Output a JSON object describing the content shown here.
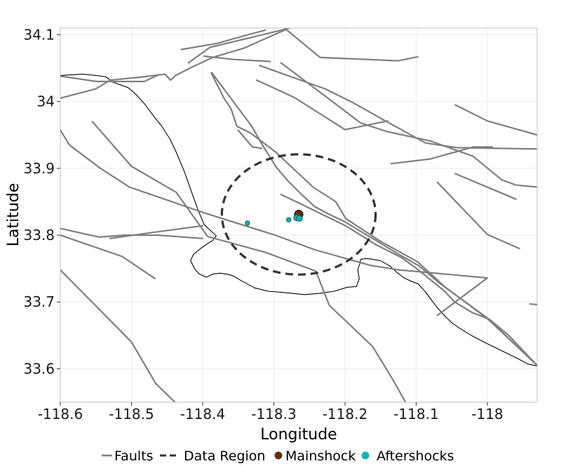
{
  "chart_data": {
    "type": "scatter",
    "xlabel": "Longitude",
    "ylabel": "Latitude",
    "xlim": [
      -118.6,
      -117.93
    ],
    "ylim": [
      33.55,
      34.11
    ],
    "grid": true,
    "x_ticks": [
      {
        "value": -118.6,
        "label": "-118.6"
      },
      {
        "value": -118.5,
        "label": "-118.5"
      },
      {
        "value": -118.4,
        "label": "-118.4"
      },
      {
        "value": -118.3,
        "label": "-118.3"
      },
      {
        "value": -118.2,
        "label": "-118.2"
      },
      {
        "value": -118.1,
        "label": "-118.1"
      },
      {
        "value": -118.0,
        "label": "-118"
      }
    ],
    "y_ticks": [
      {
        "value": 33.6,
        "label": "33.6"
      },
      {
        "value": 33.7,
        "label": "33.7"
      },
      {
        "value": 33.8,
        "label": "33.8"
      },
      {
        "value": 33.9,
        "label": "33.9"
      },
      {
        "value": 34.0,
        "label": "34"
      },
      {
        "value": 34.1,
        "label": "34.1"
      }
    ],
    "legend": {
      "placement": "bottom",
      "items": [
        {
          "label": "Faults",
          "style": "solid-line",
          "color": "#7f7f7f"
        },
        {
          "label": "Data Region",
          "style": "dashed-line",
          "color": "#333333"
        },
        {
          "label": "Mainshock",
          "style": "point",
          "color": "#5c3310"
        },
        {
          "label": "Aftershocks",
          "style": "point",
          "color": "#1aafaf"
        }
      ]
    },
    "colors": {
      "faults": "#7f7f7f",
      "coastline": "#000000",
      "region": "#333333",
      "mainshock": "#5c3310",
      "aftershocks": "#1aafaf",
      "grid": "#ebebeb"
    },
    "mainshock": {
      "x": -118.265,
      "y": 33.831
    },
    "aftershocks": [
      {
        "x": -118.337,
        "y": 33.818
      },
      {
        "x": -118.279,
        "y": 33.823
      },
      {
        "x": -118.268,
        "y": 33.826
      },
      {
        "x": -118.264,
        "y": 33.825
      }
    ],
    "data_region": {
      "center": [
        -118.265,
        33.831
      ],
      "radius_lon": 0.108,
      "radius_lat": 0.09
    },
    "coastline": [
      [
        -118.6,
        34.039
      ],
      [
        -118.569,
        34.041
      ],
      [
        -118.549,
        34.039
      ],
      [
        -118.536,
        34.037
      ],
      [
        -118.526,
        34.029
      ],
      [
        -118.505,
        34.021
      ],
      [
        -118.494,
        34.011
      ],
      [
        -118.482,
        33.997
      ],
      [
        -118.468,
        33.977
      ],
      [
        -118.458,
        33.964
      ],
      [
        -118.446,
        33.944
      ],
      [
        -118.437,
        33.924
      ],
      [
        -118.426,
        33.896
      ],
      [
        -118.416,
        33.866
      ],
      [
        -118.407,
        33.839
      ],
      [
        -118.398,
        33.816
      ],
      [
        -118.389,
        33.807
      ],
      [
        -118.381,
        33.799
      ],
      [
        -118.386,
        33.792
      ],
      [
        -118.395,
        33.786
      ],
      [
        -118.404,
        33.779
      ],
      [
        -118.413,
        33.771
      ],
      [
        -118.417,
        33.762
      ],
      [
        -118.411,
        33.749
      ],
      [
        -118.405,
        33.742
      ],
      [
        -118.395,
        33.737
      ],
      [
        -118.385,
        33.742
      ],
      [
        -118.375,
        33.743
      ],
      [
        -118.363,
        33.741
      ],
      [
        -118.355,
        33.738
      ],
      [
        -118.346,
        33.732
      ],
      [
        -118.327,
        33.721
      ],
      [
        -118.308,
        33.716
      ],
      [
        -118.284,
        33.714
      ],
      [
        -118.257,
        33.711
      ],
      [
        -118.235,
        33.713
      ],
      [
        -118.215,
        33.716
      ],
      [
        -118.197,
        33.722
      ],
      [
        -118.184,
        33.723
      ],
      [
        -118.18,
        33.735
      ],
      [
        -118.182,
        33.748
      ],
      [
        -118.179,
        33.758
      ],
      [
        -118.178,
        33.764
      ],
      [
        -118.168,
        33.765
      ],
      [
        -118.151,
        33.762
      ],
      [
        -118.137,
        33.754
      ],
      [
        -118.128,
        33.745
      ],
      [
        -118.117,
        33.736
      ],
      [
        -118.107,
        33.731
      ],
      [
        -118.097,
        33.727
      ],
      [
        -118.087,
        33.715
      ],
      [
        -118.08,
        33.705
      ],
      [
        -118.07,
        33.691
      ],
      [
        -118.058,
        33.677
      ],
      [
        -118.049,
        33.668
      ],
      [
        -118.038,
        33.66
      ],
      [
        -118.021,
        33.649
      ],
      [
        -118.001,
        33.638
      ],
      [
        -117.976,
        33.625
      ],
      [
        -117.955,
        33.614
      ],
      [
        -117.943,
        33.607
      ],
      [
        -117.93,
        33.604
      ]
    ],
    "faults": [
      [
        [
          -118.6,
          34.038
        ],
        [
          -118.549,
          34.03
        ],
        [
          -118.518,
          34.03
        ],
        [
          -118.482,
          34.03
        ],
        [
          -118.462,
          34.04
        ]
      ],
      [
        [
          -118.6,
          34.005
        ],
        [
          -118.55,
          34.019
        ],
        [
          -118.53,
          34.032
        ],
        [
          -118.483,
          34.037
        ],
        [
          -118.453,
          34.041
        ],
        [
          -118.445,
          34.032
        ],
        [
          -118.438,
          34.039
        ],
        [
          -118.418,
          34.05
        ],
        [
          -118.386,
          34.066
        ],
        [
          -118.342,
          34.08
        ],
        [
          -118.272,
          34.113
        ]
      ],
      [
        [
          -118.42,
          34.058
        ],
        [
          -118.39,
          34.081
        ],
        [
          -118.328,
          34.097
        ],
        [
          -118.285,
          34.108
        ]
      ],
      [
        [
          -118.43,
          34.078
        ],
        [
          -118.38,
          34.087
        ],
        [
          -118.34,
          34.099
        ],
        [
          -118.312,
          34.107
        ]
      ],
      [
        [
          -118.398,
          34.068
        ],
        [
          -118.357,
          34.063
        ],
        [
          -118.305,
          34.06
        ]
      ],
      [
        [
          -118.285,
          34.11
        ],
        [
          -118.235,
          34.066
        ],
        [
          -118.125,
          34.061
        ],
        [
          -118.098,
          34.067
        ]
      ],
      [
        [
          -118.32,
          34.054
        ],
        [
          -118.27,
          34.035
        ],
        [
          -118.228,
          34.019
        ],
        [
          -118.19,
          33.999
        ],
        [
          -118.145,
          33.972
        ],
        [
          -118.087,
          33.938
        ],
        [
          -118.043,
          33.931
        ],
        [
          -117.93,
          33.929
        ]
      ],
      [
        [
          -118.29,
          34.058
        ],
        [
          -118.23,
          34.01
        ],
        [
          -118.178,
          33.968
        ],
        [
          -118.141,
          33.955
        ],
        [
          -118.08,
          33.941
        ],
        [
          -118.02,
          33.918
        ],
        [
          -117.98,
          33.883
        ],
        [
          -117.96,
          33.875
        ],
        [
          -117.93,
          33.872
        ]
      ],
      [
        [
          -118.324,
          34.032
        ],
        [
          -118.271,
          34.006
        ],
        [
          -118.2,
          33.958
        ],
        [
          -118.14,
          33.971
        ]
      ],
      [
        [
          -118.135,
          33.907
        ],
        [
          -118.08,
          33.914
        ],
        [
          -118.02,
          33.932
        ],
        [
          -117.993,
          33.932
        ]
      ],
      [
        [
          -118.045,
          33.995
        ],
        [
          -118.0,
          33.971
        ],
        [
          -117.93,
          33.95
        ]
      ],
      [
        [
          -118.045,
          33.892
        ],
        [
          -117.96,
          33.854
        ]
      ],
      [
        [
          -118.07,
          33.879
        ],
        [
          -118.0,
          33.801
        ],
        [
          -117.955,
          33.78
        ]
      ],
      [
        [
          -118.6,
          33.957
        ],
        [
          -118.587,
          33.935
        ],
        [
          -118.545,
          33.901
        ],
        [
          -118.503,
          33.872
        ],
        [
          -118.397,
          33.833
        ],
        [
          -118.298,
          33.8
        ],
        [
          -118.242,
          33.778
        ],
        [
          -118.165,
          33.755
        ],
        [
          -118.125,
          33.748
        ],
        [
          -118.0,
          33.736
        ],
        [
          -118.07,
          33.68
        ]
      ],
      [
        [
          -118.555,
          33.97
        ],
        [
          -118.5,
          33.903
        ],
        [
          -118.437,
          33.864
        ],
        [
          -118.393,
          33.798
        ],
        [
          -118.311,
          33.774
        ],
        [
          -118.241,
          33.746
        ],
        [
          -118.222,
          33.695
        ],
        [
          -118.161,
          33.633
        ],
        [
          -118.133,
          33.584
        ],
        [
          -118.115,
          33.55
        ]
      ],
      [
        [
          -118.29,
          33.861
        ],
        [
          -118.253,
          33.842
        ],
        [
          -118.199,
          33.814
        ],
        [
          -118.157,
          33.786
        ],
        [
          -118.12,
          33.766
        ],
        [
          -118.097,
          33.748
        ],
        [
          -118.06,
          33.716
        ],
        [
          -118.046,
          33.7
        ],
        [
          -118.021,
          33.684
        ],
        [
          -117.997,
          33.674
        ],
        [
          -117.97,
          33.65
        ],
        [
          -117.93,
          33.605
        ]
      ],
      [
        [
          -118.388,
          34.043
        ],
        [
          -118.37,
          34.005
        ],
        [
          -118.36,
          33.989
        ],
        [
          -118.352,
          33.963
        ],
        [
          -118.333,
          33.953
        ],
        [
          -118.298,
          33.925
        ],
        [
          -118.275,
          33.902
        ],
        [
          -118.245,
          33.872
        ],
        [
          -118.213,
          33.85
        ],
        [
          -118.199,
          33.825
        ],
        [
          -118.152,
          33.792
        ],
        [
          -118.098,
          33.76
        ],
        [
          -118.059,
          33.722
        ],
        [
          -118.0,
          33.675
        ],
        [
          -117.93,
          33.605
        ]
      ],
      [
        [
          -118.387,
          34.043
        ],
        [
          -118.331,
          33.963
        ],
        [
          -118.316,
          33.935
        ],
        [
          -118.296,
          33.901
        ],
        [
          -118.28,
          33.881
        ],
        [
          -118.262,
          33.862
        ],
        [
          -118.243,
          33.843
        ],
        [
          -118.222,
          33.831
        ],
        [
          -118.2,
          33.82
        ],
        [
          -118.18,
          33.807
        ],
        [
          -118.158,
          33.793
        ],
        [
          -118.127,
          33.773
        ],
        [
          -118.096,
          33.754
        ],
        [
          -118.067,
          33.728
        ],
        [
          -118.058,
          33.721
        ],
        [
          -118.031,
          33.7
        ],
        [
          -118.0,
          33.676
        ],
        [
          -117.93,
          33.605
        ]
      ],
      [
        [
          -118.35,
          33.957
        ],
        [
          -118.33,
          33.932
        ],
        [
          -118.317,
          33.93
        ]
      ],
      [
        [
          -118.6,
          33.81
        ],
        [
          -118.545,
          33.797
        ],
        [
          -118.51,
          33.8
        ],
        [
          -118.463,
          33.8
        ],
        [
          -118.4,
          33.795
        ]
      ],
      [
        [
          -118.53,
          33.795
        ],
        [
          -118.47,
          33.804
        ],
        [
          -118.4,
          33.814
        ]
      ],
      [
        [
          -118.6,
          33.8
        ],
        [
          -118.513,
          33.768
        ],
        [
          -118.467,
          33.735
        ]
      ],
      [
        [
          -118.6,
          33.748
        ],
        [
          -118.5,
          33.64
        ],
        [
          -118.466,
          33.578
        ],
        [
          -118.439,
          33.55
        ]
      ],
      [
        [
          -117.94,
          33.697
        ],
        [
          -117.93,
          33.696
        ]
      ]
    ]
  }
}
